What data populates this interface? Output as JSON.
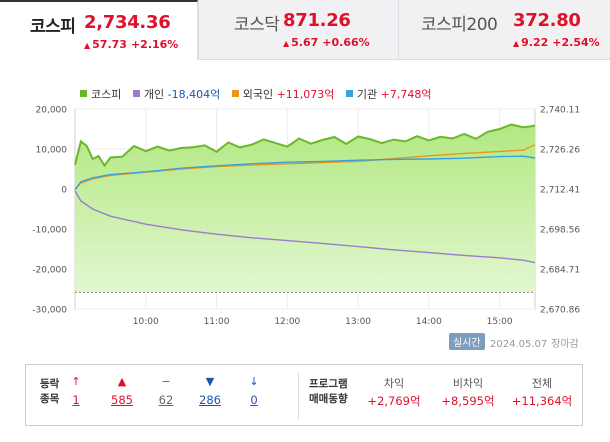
{
  "tabs": [
    {
      "name": "코스피",
      "value": "2,734.36",
      "change": "57.73",
      "percent": "+2.16%",
      "active": true
    },
    {
      "name": "코스닥",
      "value": "871.26",
      "change": "5.67",
      "percent": "+0.66%",
      "active": false
    },
    {
      "name": "코스피200",
      "value": "372.80",
      "change": "9.22",
      "percent": "+2.54%",
      "active": false
    }
  ],
  "legend": [
    {
      "label": "코스피",
      "value": "",
      "color": "#6ab82a"
    },
    {
      "label": "개인",
      "value": "-18,404억",
      "color": "#9b7ccc",
      "value_color": "#1a55b5"
    },
    {
      "label": "외국인",
      "value": "+11,073억",
      "color": "#e8961e",
      "value_color": "#e0102b"
    },
    {
      "label": "기관",
      "value": "+7,748억",
      "color": "#3aa0e0",
      "value_color": "#e0102b"
    }
  ],
  "chart_data": {
    "type": "area",
    "x_ticks": [
      "10:00",
      "11:00",
      "12:00",
      "13:00",
      "14:00",
      "15:00"
    ],
    "y_left_ticks": [
      "20,000",
      "10,000",
      "0",
      "-10,000",
      "-20,000",
      "-30,000"
    ],
    "y_left_range": [
      -30000,
      20000
    ],
    "y_right_ticks": [
      "2,740.11",
      "2,726.26",
      "2,712.41",
      "2,698.56",
      "2,684.71",
      "2,670.86"
    ],
    "y_right_range": [
      2670.86,
      2740.11
    ],
    "prev_close": 2676.63,
    "time_range": [
      "09:00",
      "15:30"
    ],
    "series": [
      {
        "name": "코스피",
        "axis": "right",
        "color": "#6ab82a",
        "x": [
          "09:00",
          "09:05",
          "09:10",
          "09:15",
          "09:20",
          "09:25",
          "09:30",
          "09:40",
          "09:50",
          "10:00",
          "10:10",
          "10:20",
          "10:30",
          "10:40",
          "10:50",
          "11:00",
          "11:10",
          "11:20",
          "11:30",
          "11:40",
          "11:50",
          "12:00",
          "12:10",
          "12:20",
          "12:30",
          "12:40",
          "12:50",
          "13:00",
          "13:10",
          "13:20",
          "13:30",
          "13:40",
          "13:50",
          "14:00",
          "14:10",
          "14:20",
          "14:30",
          "14:40",
          "14:50",
          "15:00",
          "15:10",
          "15:20",
          "15:25",
          "15:30"
        ],
        "values": [
          2720.8,
          2728.9,
          2727.3,
          2722.8,
          2723.8,
          2720.5,
          2723.3,
          2723.6,
          2727.3,
          2725.5,
          2727.1,
          2725.7,
          2726.6,
          2726.9,
          2727.5,
          2725.3,
          2728.5,
          2726.8,
          2727.8,
          2729.6,
          2728.3,
          2727.1,
          2729.9,
          2728.1,
          2729.4,
          2730.4,
          2728.0,
          2730.6,
          2729.7,
          2728.3,
          2729.5,
          2728.9,
          2730.7,
          2729.2,
          2730.5,
          2729.9,
          2731.5,
          2729.8,
          2732.2,
          2733.2,
          2734.7,
          2733.8,
          2734.0,
          2734.36
        ]
      },
      {
        "name": "개인",
        "axis": "left",
        "color": "#9b7ccc",
        "x": [
          "09:00",
          "09:05",
          "09:15",
          "09:30",
          "10:00",
          "10:30",
          "11:00",
          "11:30",
          "12:00",
          "12:30",
          "13:00",
          "13:30",
          "14:00",
          "14:30",
          "15:00",
          "15:20",
          "15:30"
        ],
        "values": [
          -500,
          -3000,
          -5000,
          -6800,
          -8800,
          -10200,
          -11300,
          -12200,
          -12900,
          -13600,
          -14400,
          -15200,
          -15900,
          -16600,
          -17200,
          -17800,
          -18404
        ]
      },
      {
        "name": "외국인",
        "axis": "left",
        "color": "#e8961e",
        "x": [
          "09:00",
          "09:05",
          "09:15",
          "09:30",
          "10:00",
          "10:30",
          "11:00",
          "11:30",
          "12:00",
          "12:30",
          "13:00",
          "13:30",
          "14:00",
          "14:30",
          "15:00",
          "15:20",
          "15:30"
        ],
        "values": [
          0,
          1500,
          2500,
          3400,
          4200,
          5000,
          5600,
          6000,
          6300,
          6600,
          6900,
          7600,
          8300,
          8900,
          9400,
          9700,
          11073
        ]
      },
      {
        "name": "기관",
        "axis": "left",
        "color": "#3aa0e0",
        "x": [
          "09:00",
          "09:05",
          "09:15",
          "09:30",
          "10:00",
          "10:30",
          "11:00",
          "11:30",
          "12:00",
          "12:30",
          "13:00",
          "13:30",
          "14:00",
          "14:30",
          "15:00",
          "15:20",
          "15:30"
        ],
        "values": [
          -200,
          1800,
          2800,
          3600,
          4300,
          5200,
          5800,
          6300,
          6700,
          6900,
          7200,
          7400,
          7500,
          7700,
          8100,
          8200,
          7748
        ]
      }
    ]
  },
  "status": {
    "realtime": "실시간",
    "date": "2024.05.07",
    "closed": "장마감"
  },
  "breadth": {
    "label_line1": "등락",
    "label_line2": "종목",
    "items": [
      {
        "icon": "↑",
        "value": "1",
        "color": "#e0102b",
        "icon_name": "upper-limit-icon"
      },
      {
        "icon": "▲",
        "value": "585",
        "color": "#e0102b",
        "icon_name": "rise-icon"
      },
      {
        "icon": "−",
        "value": "62",
        "color": "#666666",
        "icon_name": "unchanged-icon"
      },
      {
        "icon": "▼",
        "value": "286",
        "color": "#1a55b5",
        "icon_name": "fall-icon"
      },
      {
        "icon": "↓",
        "value": "0",
        "color": "#1a55b5",
        "icon_name": "lower-limit-icon"
      }
    ]
  },
  "program": {
    "label_line1": "프로그램",
    "label_line2": "매매동향",
    "columns": [
      {
        "header": "차익",
        "value": "+2,769억"
      },
      {
        "header": "비차익",
        "value": "+8,595억"
      },
      {
        "header": "전체",
        "value": "+11,364억"
      }
    ]
  }
}
